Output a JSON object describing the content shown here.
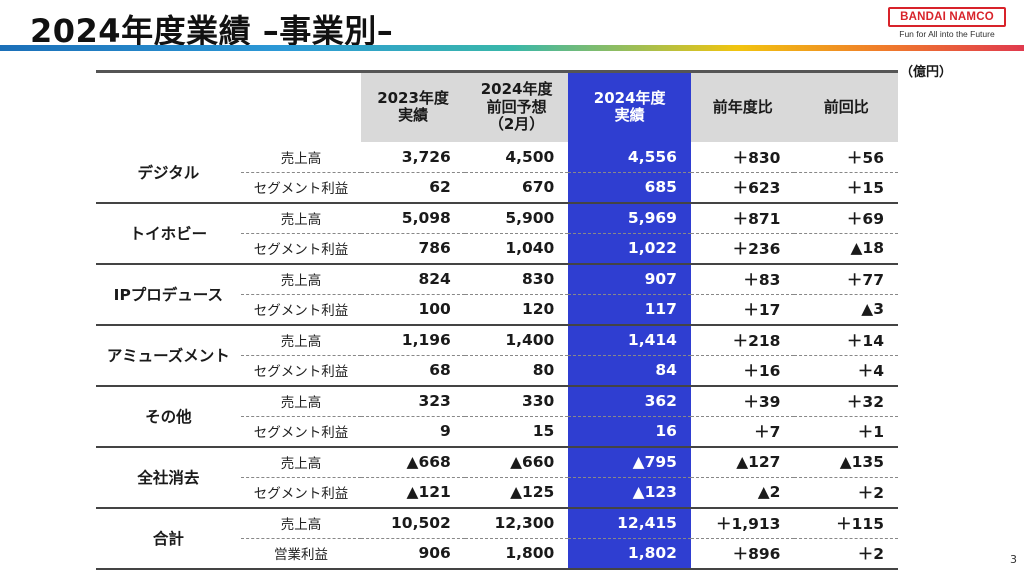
{
  "title": "2024年度業績 –事業別–",
  "logo": {
    "name": "BANDAI NAMCO",
    "tagline": "Fun for All into the Future"
  },
  "unit": "（億円）",
  "page_number": "3",
  "table": {
    "headers": [
      {
        "lines": [
          "2023年度",
          "実績"
        ]
      },
      {
        "lines": [
          "2024年度",
          "前回予想",
          "（2月）"
        ]
      },
      {
        "lines": [
          "2024年度",
          "実績"
        ]
      },
      {
        "lines": [
          "前年度比"
        ]
      },
      {
        "lines": [
          "前回比"
        ]
      }
    ],
    "segments": [
      {
        "name": "デジタル",
        "rows": [
          {
            "item": "売上高",
            "values": [
              "3,726",
              "4,500",
              "4,556",
              "＋830",
              "＋56"
            ]
          },
          {
            "item": "セグメント利益",
            "values": [
              "62",
              "670",
              "685",
              "＋623",
              "＋15"
            ]
          }
        ]
      },
      {
        "name": "トイホビー",
        "rows": [
          {
            "item": "売上高",
            "values": [
              "5,098",
              "5,900",
              "5,969",
              "＋871",
              "＋69"
            ]
          },
          {
            "item": "セグメント利益",
            "values": [
              "786",
              "1,040",
              "1,022",
              "＋236",
              "▲18"
            ]
          }
        ]
      },
      {
        "name": "IPプロデュース",
        "rows": [
          {
            "item": "売上高",
            "values": [
              "824",
              "830",
              "907",
              "＋83",
              "＋77"
            ]
          },
          {
            "item": "セグメント利益",
            "values": [
              "100",
              "120",
              "117",
              "＋17",
              "▲3"
            ]
          }
        ]
      },
      {
        "name": "アミューズメント",
        "rows": [
          {
            "item": "売上高",
            "values": [
              "1,196",
              "1,400",
              "1,414",
              "＋218",
              "＋14"
            ]
          },
          {
            "item": "セグメント利益",
            "values": [
              "68",
              "80",
              "84",
              "＋16",
              "＋4"
            ]
          }
        ]
      },
      {
        "name": "その他",
        "rows": [
          {
            "item": "売上高",
            "values": [
              "323",
              "330",
              "362",
              "＋39",
              "＋32"
            ]
          },
          {
            "item": "セグメント利益",
            "values": [
              "9",
              "15",
              "16",
              "＋7",
              "＋1"
            ]
          }
        ]
      },
      {
        "name": "全社消去",
        "rows": [
          {
            "item": "売上高",
            "values": [
              "▲668",
              "▲660",
              "▲795",
              "▲127",
              "▲135"
            ]
          },
          {
            "item": "セグメント利益",
            "values": [
              "▲121",
              "▲125",
              "▲123",
              "▲2",
              "＋2"
            ]
          }
        ]
      },
      {
        "name": "合計",
        "rows": [
          {
            "item": "売上高",
            "values": [
              "10,502",
              "12,300",
              "12,415",
              "＋1,913",
              "＋115"
            ]
          },
          {
            "item": "営業利益",
            "values": [
              "906",
              "1,800",
              "1,802",
              "＋896",
              "＋2"
            ]
          }
        ]
      }
    ]
  },
  "colors": {
    "highlight": "#2f3ed1",
    "header_gray": "#d9d9d9",
    "logo_red": "#d8232a"
  }
}
